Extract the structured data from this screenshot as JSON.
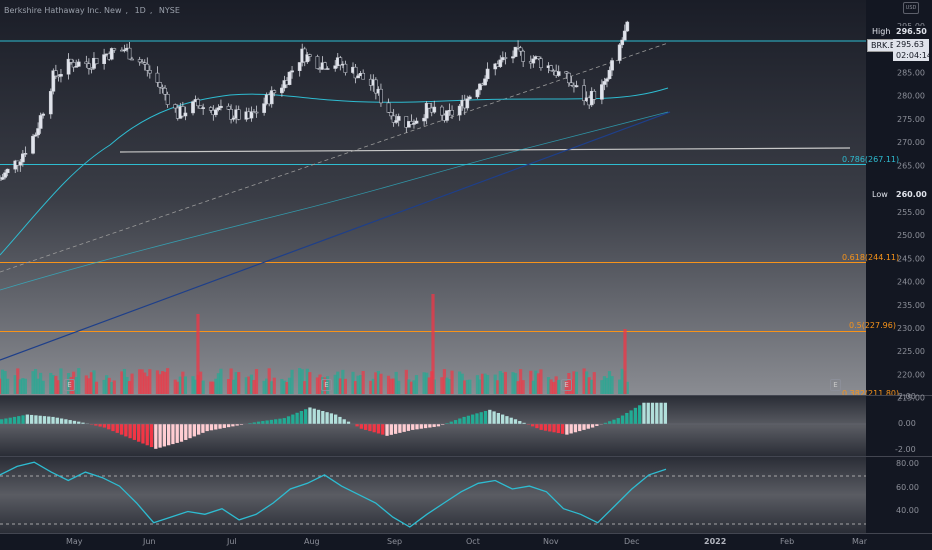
{
  "header": {
    "symbol": "Berkshire Hathaway Inc. New",
    "interval": "1D",
    "exchange": "NYSE",
    "currency": "USD"
  },
  "price_scale": {
    "labels": [
      "295.00",
      "290.00",
      "285.00",
      "280.00",
      "275.00",
      "270.00",
      "265.00",
      "255.00",
      "250.00",
      "245.00",
      "240.00",
      "235.00",
      "230.00",
      "225.00",
      "220.00",
      "215.00"
    ]
  },
  "tags": {
    "high_label": "High",
    "high_value": "296.50",
    "ticker": "BRK.B",
    "last_price": "295.63",
    "countdown": "02:04:14",
    "low_label": "Low",
    "low_value": "260.00"
  },
  "fib": {
    "f786": "0.786(267.11)",
    "f618": "0.618(244.11)",
    "f5": "0.5(227.96)",
    "f382": "0.382(211.80)"
  },
  "macd_scale": [
    "2.00",
    "0.00",
    "-2.00"
  ],
  "rsi_scale": [
    "80.00",
    "60.00",
    "40.00"
  ],
  "x_axis": [
    "May",
    "Jun",
    "Jul",
    "Aug",
    "Sep",
    "Oct",
    "Nov",
    "Dec",
    "2022",
    "Feb",
    "Mar"
  ],
  "earnings_flag": "E",
  "colors": {
    "up": "#e0e3eb",
    "down": "#1e222d",
    "vol_up": "#22ab94",
    "vol_down": "#f23645",
    "teal": "#2ebcd1",
    "orange": "#f7931a",
    "grey_line": "#c8c8c8"
  },
  "chart_data": [
    {
      "type": "candlestick",
      "title": "Berkshire Hathaway Inc. New, 1D, NYSE",
      "ylim": [
        213,
        298
      ],
      "x_range": [
        "2021-04-13",
        "2022-03-20"
      ],
      "close_series": [
        [
          "2021-04-13",
          262
        ],
        [
          "2021-04-20",
          266
        ],
        [
          "2021-04-27",
          272
        ],
        [
          "2021-05-04",
          284
        ],
        [
          "2021-05-11",
          287
        ],
        [
          "2021-05-18",
          287
        ],
        [
          "2021-05-25",
          289
        ],
        [
          "2021-06-01",
          290
        ],
        [
          "2021-06-08",
          287
        ],
        [
          "2021-06-15",
          282
        ],
        [
          "2021-06-22",
          276
        ],
        [
          "2021-06-29",
          278
        ],
        [
          "2021-07-06",
          277
        ],
        [
          "2021-07-13",
          276
        ],
        [
          "2021-07-20",
          275
        ],
        [
          "2021-07-27",
          279
        ],
        [
          "2021-08-03",
          283
        ],
        [
          "2021-08-10",
          289
        ],
        [
          "2021-08-17",
          287
        ],
        [
          "2021-08-24",
          287
        ],
        [
          "2021-08-31",
          285
        ],
        [
          "2021-09-07",
          282
        ],
        [
          "2021-09-14",
          276
        ],
        [
          "2021-09-21",
          274
        ],
        [
          "2021-09-28",
          277
        ],
        [
          "2021-10-05",
          275
        ],
        [
          "2021-10-12",
          278
        ],
        [
          "2021-10-19",
          283
        ],
        [
          "2021-10-26",
          287
        ],
        [
          "2021-11-02",
          289
        ],
        [
          "2021-11-09",
          288
        ],
        [
          "2021-11-16",
          286
        ],
        [
          "2021-11-23",
          283
        ],
        [
          "2021-11-30",
          279
        ],
        [
          "2021-12-07",
          282
        ],
        [
          "2021-12-14",
          292
        ],
        [
          "2021-12-17",
          295.63
        ]
      ],
      "high": 296.5,
      "low": 260.0,
      "fib_levels": [
        {
          "label": "0.786(267.11)",
          "value": 267.11
        },
        {
          "label": "0.618(244.11)",
          "value": 244.11
        },
        {
          "label": "0.5(227.96)",
          "value": 227.96
        },
        {
          "label": "0.382(211.80)",
          "value": 211.8
        }
      ]
    },
    {
      "type": "bar",
      "title": "MACD histogram",
      "ylim": [
        -2.2,
        2.2
      ],
      "values": [
        0.4,
        0.8,
        0.6,
        0.2,
        -0.3,
        -1.2,
        -2.1,
        -1.5,
        -0.6,
        -0.2,
        0.2,
        0.5,
        1.4,
        0.8,
        -0.4,
        -1.0,
        -0.5,
        -0.2,
        0.6,
        1.2,
        0.4,
        -0.5,
        -0.9,
        -0.3,
        0.5,
        1.8
      ]
    },
    {
      "type": "line",
      "title": "RSI",
      "ylim": [
        28,
        82
      ],
      "values": [
        70,
        76,
        79,
        72,
        66,
        72,
        68,
        62,
        50,
        36,
        40,
        44,
        42,
        46,
        38,
        42,
        50,
        60,
        64,
        70,
        62,
        56,
        50,
        40,
        33,
        42,
        50,
        58,
        64,
        66,
        60,
        62,
        58,
        46,
        42,
        36,
        48,
        60,
        70,
        74
      ]
    }
  ]
}
